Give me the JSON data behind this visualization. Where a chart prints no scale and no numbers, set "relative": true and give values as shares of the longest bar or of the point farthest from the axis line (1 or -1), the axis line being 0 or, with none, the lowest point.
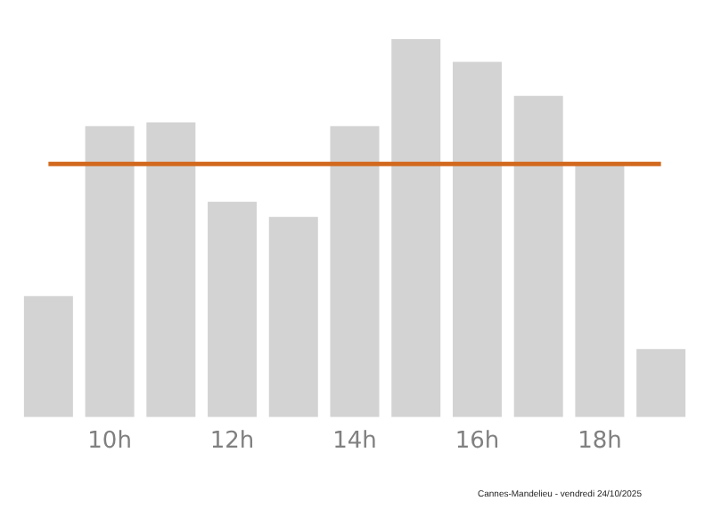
{
  "chart_data": {
    "type": "bar",
    "relative": true,
    "categories": [
      null,
      "10h",
      null,
      "12h",
      null,
      "14h",
      null,
      "16h",
      null,
      "18h",
      null
    ],
    "values": [
      0.32,
      0.77,
      0.78,
      0.57,
      0.53,
      0.77,
      1,
      0.94,
      0.85,
      0.67,
      0.18
    ],
    "color": "#d3d3d3",
    "ref_lines": [
      {
        "axis": "y",
        "value": 0.67,
        "color": "#d2691e"
      }
    ],
    "grid": false,
    "legend": false,
    "annotations": [
      "Cannes-Mandelieu - vendredi 24/10/2025"
    ]
  }
}
